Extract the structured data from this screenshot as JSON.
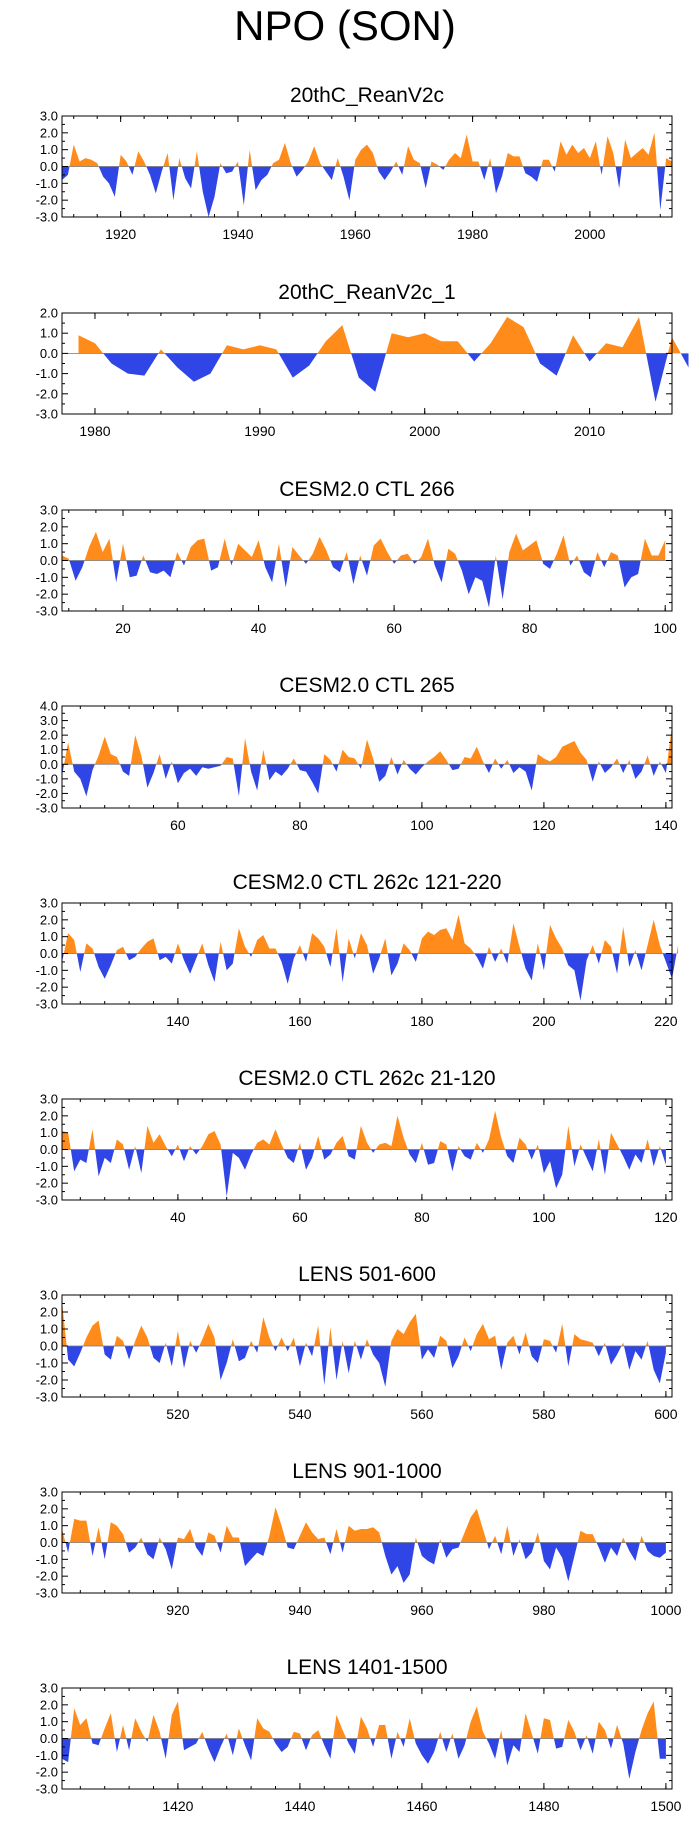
{
  "title": "NPO (SON)",
  "colors": {
    "positive": "#ff8c1a",
    "negative": "#3045e6",
    "axis": "#000000"
  },
  "chart_data": [
    {
      "type": "area",
      "title": "20thC_ReanV2c",
      "xlim": [
        1910,
        2014
      ],
      "ylim": [
        -3.0,
        3.0
      ],
      "yticks": [
        "3.0",
        "2.0",
        "1.0",
        "0.0",
        "-1.0",
        "-2.0",
        "-3.0"
      ],
      "xticks": [
        1920,
        1940,
        1960,
        1980,
        2000
      ],
      "x_start": 1910,
      "values": [
        -0.8,
        -0.5,
        1.3,
        0.3,
        0.5,
        0.4,
        0.2,
        -0.6,
        -1.0,
        -1.8,
        0.7,
        0.3,
        -0.5,
        0.9,
        0.3,
        -0.5,
        -1.6,
        -0.3,
        0.8,
        -2.0,
        0.5,
        -0.7,
        -1.3,
        0.9,
        -1.5,
        -3.0,
        -1.8,
        0.2,
        -0.4,
        -0.3,
        0.3,
        -2.3,
        1.0,
        -1.4,
        -0.8,
        -0.5,
        0.2,
        0.4,
        1.4,
        0.2,
        -0.6,
        -0.2,
        0.3,
        1.2,
        0.2,
        -0.3,
        -0.8,
        0.5,
        -0.6,
        -2.0,
        0.4,
        1.0,
        1.3,
        0.8,
        -0.3,
        -0.8,
        -0.3,
        0.3,
        -0.5,
        1.2,
        0.4,
        0.2,
        -1.3,
        0.3,
        0.1,
        -0.2,
        0.4,
        0.8,
        0.5,
        1.9,
        0.3,
        0.3,
        -0.8,
        0.5,
        -1.6,
        -0.6,
        0.8,
        0.6,
        0.6,
        -0.4,
        -0.6,
        -0.9,
        0.4,
        0.4,
        -0.3,
        1.5,
        0.7,
        1.3,
        0.8,
        1.1,
        0.5,
        1.5,
        -0.5,
        1.8,
        0.8,
        -1.3,
        1.6,
        0.5,
        0.8,
        1.1,
        0.7,
        2.0,
        -2.6,
        0.5,
        0.3
      ]
    },
    {
      "type": "area",
      "title": "20thC_ReanV2c_1",
      "xlim": [
        1978,
        2015
      ],
      "ylim": [
        -3.0,
        2.0
      ],
      "yticks": [
        "2.0",
        "1.0",
        "0.0",
        "-1.0",
        "-2.0",
        "-3.0"
      ],
      "xticks": [
        1980,
        1990,
        2000,
        2010
      ],
      "x_start": 1979,
      "values": [
        0.9,
        0.5,
        -0.5,
        -1.0,
        -1.1,
        0.2,
        -0.7,
        -1.4,
        -1.0,
        0.4,
        0.2,
        0.4,
        0.2,
        -1.2,
        -0.6,
        0.6,
        1.4,
        -1.2,
        -1.9,
        1.0,
        0.8,
        1.0,
        0.6,
        0.6,
        -0.4,
        0.5,
        1.8,
        1.3,
        -0.5,
        -1.1,
        0.9,
        -0.4,
        0.5,
        0.3,
        1.8,
        -2.4,
        0.8,
        -0.7
      ]
    },
    {
      "type": "area",
      "title": "CESM2.0 CTL 266",
      "xlim": [
        11,
        101
      ],
      "ylim": [
        -3.0,
        3.0
      ],
      "yticks": [
        "3.0",
        "2.0",
        "1.0",
        "0.0",
        "-1.0",
        "-2.0",
        "-3.0"
      ],
      "xticks": [
        20,
        40,
        60,
        80,
        100
      ],
      "x_start": 11,
      "values": [
        0.3,
        0.1,
        -1.2,
        -0.4,
        0.8,
        1.7,
        0.5,
        1.3,
        -1.3,
        1.0,
        -1.0,
        -0.9,
        0.3,
        -0.7,
        -0.8,
        -0.6,
        -1.0,
        0.5,
        -0.3,
        0.8,
        1.2,
        1.3,
        -0.6,
        -0.4,
        1.3,
        -0.3,
        1.0,
        0.6,
        0.2,
        1.2,
        -0.4,
        -1.3,
        1.0,
        -1.6,
        0.8,
        0.3,
        -0.2,
        0.4,
        1.4,
        0.6,
        -0.4,
        -0.7,
        0.5,
        -1.4,
        0.3,
        -0.9,
        0.9,
        1.3,
        0.5,
        -0.2,
        0.3,
        0.4,
        -0.2,
        0.2,
        1.3,
        -0.3,
        -1.3,
        0.7,
        0.4,
        -0.6,
        -2.0,
        -1.0,
        -1.2,
        -2.8,
        0.3,
        -2.3,
        0.5,
        1.6,
        0.6,
        0.9,
        1.2,
        -0.2,
        -0.5,
        0.4,
        1.5,
        -0.3,
        0.3,
        -0.7,
        -1.0,
        0.5,
        -0.4,
        0.5,
        0.3,
        -1.6,
        -1.0,
        -0.8,
        1.3,
        0.3,
        0.3,
        1.2
      ]
    },
    {
      "type": "area",
      "title": "CESM2.0 CTL 265",
      "xlim": [
        41,
        141
      ],
      "ylim": [
        -3.0,
        4.0
      ],
      "yticks": [
        "4.0",
        "3.0",
        "2.0",
        "1.0",
        "0.0",
        "-1.0",
        "-2.0",
        "-3.0"
      ],
      "xticks": [
        60,
        80,
        100,
        120,
        140
      ],
      "x_start": 41,
      "values": [
        -0.8,
        1.5,
        -0.5,
        -1.0,
        -2.2,
        -0.4,
        0.6,
        1.9,
        0.7,
        0.5,
        -0.5,
        -0.8,
        2.0,
        0.6,
        -1.6,
        -0.6,
        0.7,
        -1.0,
        0.2,
        -1.3,
        -0.6,
        -0.3,
        -0.8,
        -0.2,
        -0.3,
        -0.2,
        -0.1,
        0.5,
        0.4,
        -2.2,
        1.8,
        -0.5,
        -1.8,
        1.0,
        -1.1,
        -0.5,
        -0.8,
        -0.3,
        0.4,
        -0.4,
        -0.5,
        -1.2,
        -2.0,
        0.7,
        0.3,
        -0.5,
        1.0,
        0.5,
        0.4,
        -0.3,
        1.7,
        0.4,
        -1.2,
        -0.8,
        0.5,
        -0.7,
        0.3,
        -0.3,
        -0.7,
        -0.2,
        0.2,
        0.5,
        0.9,
        0.3,
        -0.4,
        -0.3,
        0.5,
        0.4,
        1.2,
        0.2,
        -0.6,
        0.4,
        -0.3,
        0.3,
        -0.6,
        -0.2,
        -0.5,
        -1.8,
        0.7,
        0.4,
        0.2,
        0.5,
        1.2,
        1.4,
        1.6,
        0.8,
        0.3,
        -1.2,
        0.2,
        -0.6,
        -0.2,
        0.4,
        -0.6,
        0.3,
        -1.0,
        -0.5,
        0.6,
        -0.8,
        0.2,
        -0.6,
        2.7
      ]
    },
    {
      "type": "area",
      "title": "CESM2.0 CTL 262c 121-220",
      "xlim": [
        121,
        221
      ],
      "ylim": [
        -3.0,
        3.0
      ],
      "yticks": [
        "3.0",
        "2.0",
        "1.0",
        "0.0",
        "-1.0",
        "-2.0",
        "-3.0"
      ],
      "xticks": [
        140,
        160,
        180,
        200,
        220
      ],
      "x_start": 121,
      "values": [
        -0.5,
        1.2,
        0.8,
        -1.1,
        0.6,
        0.3,
        -0.8,
        -1.5,
        -0.7,
        0.2,
        0.4,
        -0.4,
        -0.2,
        0.3,
        0.7,
        0.9,
        -0.4,
        -0.2,
        -0.6,
        0.6,
        -0.4,
        -1.2,
        -0.3,
        0.6,
        -0.7,
        -1.7,
        0.7,
        -1.0,
        -0.6,
        1.5,
        0.4,
        -0.2,
        0.8,
        1.1,
        0.3,
        0.3,
        -0.5,
        -1.8,
        -0.3,
        0.5,
        -0.5,
        1.2,
        0.9,
        0.4,
        -0.8,
        1.5,
        -1.7,
        0.9,
        -0.3,
        1.2,
        0.5,
        -1.2,
        -0.3,
        0.9,
        -1.3,
        -0.6,
        0.6,
        0.2,
        -0.5,
        0.9,
        1.3,
        1.1,
        1.4,
        1.5,
        0.8,
        2.3,
        0.6,
        0.3,
        -0.2,
        -0.9,
        0.4,
        -0.5,
        0.3,
        -0.6,
        1.8,
        0.4,
        -0.9,
        -1.6,
        0.6,
        -1.0,
        1.7,
        0.9,
        0.3,
        -0.7,
        -1.0,
        -2.8,
        -0.4,
        0.5,
        -0.6,
        0.8,
        0.4,
        -1.2,
        1.6,
        -0.8,
        0.2,
        -1.0,
        0.5,
        2.0,
        0.5,
        -0.5,
        -1.5,
        0.5
      ]
    },
    {
      "type": "area",
      "title": "CESM2.0 CTL 262c 21-120",
      "xlim": [
        21,
        121
      ],
      "ylim": [
        -3.0,
        3.0
      ],
      "yticks": [
        "3.0",
        "2.0",
        "1.0",
        "0.0",
        "-1.0",
        "-2.0",
        "-3.0"
      ],
      "xticks": [
        40,
        60,
        80,
        100,
        120
      ],
      "x_start": 21,
      "values": [
        1.1,
        1.0,
        -1.3,
        -0.6,
        -0.8,
        1.2,
        -1.6,
        -0.5,
        -0.8,
        0.6,
        0.3,
        -1.2,
        0.2,
        -1.4,
        1.4,
        0.4,
        0.9,
        0.2,
        -0.4,
        0.3,
        -0.7,
        0.2,
        -0.3,
        0.2,
        0.9,
        1.1,
        0.3,
        -2.8,
        -0.2,
        -0.5,
        -1.2,
        -0.3,
        0.4,
        0.6,
        0.3,
        1.2,
        0.3,
        -0.5,
        -0.8,
        0.4,
        -1.2,
        -0.5,
        0.8,
        -0.6,
        -0.3,
        0.4,
        0.8,
        -0.4,
        -0.6,
        1.4,
        0.4,
        -0.2,
        0.3,
        0.4,
        0.2,
        2.0,
        0.7,
        -0.3,
        -0.8,
        0.4,
        -0.9,
        -0.8,
        0.5,
        0.3,
        -1.3,
        0.2,
        -0.4,
        -0.6,
        0.4,
        -0.2,
        0.6,
        2.3,
        0.7,
        -0.4,
        -0.8,
        0.7,
        0.3,
        -0.6,
        0.3,
        -1.4,
        -0.7,
        -2.3,
        -1.5,
        1.4,
        -1.0,
        0.3,
        -0.5,
        -1.3,
        0.6,
        -1.5,
        1.0,
        0.3,
        -0.4,
        -1.2,
        -0.3,
        -0.8,
        0.6,
        -1.0,
        0.2,
        -0.9
      ]
    },
    {
      "type": "area",
      "title": "LENS 501-600",
      "xlim": [
        501,
        601
      ],
      "ylim": [
        -3.0,
        3.0
      ],
      "yticks": [
        "3.0",
        "2.0",
        "1.0",
        "0.0",
        "-1.0",
        "-2.0",
        "-3.0"
      ],
      "xticks": [
        520,
        540,
        560,
        580,
        600
      ],
      "x_start": 501,
      "values": [
        2.6,
        -0.8,
        -1.2,
        -0.4,
        0.5,
        1.2,
        1.5,
        -0.5,
        -0.8,
        0.6,
        0.3,
        -0.8,
        0.3,
        1.2,
        0.5,
        -0.7,
        -1.0,
        0.2,
        -1.2,
        0.9,
        -1.3,
        0.3,
        -0.4,
        0.4,
        1.3,
        0.5,
        -2.0,
        -1.0,
        0.4,
        -0.9,
        -0.7,
        0.3,
        -0.4,
        1.7,
        0.5,
        -0.3,
        0.5,
        -0.3,
        0.5,
        -1.2,
        0.2,
        -0.6,
        1.2,
        -2.3,
        1.1,
        -2.0,
        0.3,
        -1.6,
        0.3,
        -0.8,
        0.4,
        -0.5,
        -1.0,
        -2.4,
        0.3,
        1.0,
        0.7,
        1.4,
        1.9,
        -0.8,
        -0.2,
        -0.7,
        0.6,
        0.3,
        -1.3,
        -0.6,
        0.5,
        -0.3,
        0.7,
        1.3,
        0.4,
        0.6,
        -1.4,
        0.2,
        0.6,
        -0.5,
        0.8,
        -0.6,
        -1.0,
        0.4,
        0.3,
        -0.4,
        1.3,
        -1.2,
        0.7,
        0.4,
        0.3,
        0.2,
        -0.6,
        0.2,
        -1.1,
        -0.5,
        0.2,
        -1.4,
        -0.3,
        -0.8,
        0.3,
        -1.4,
        -2.2,
        -0.4
      ]
    },
    {
      "type": "area",
      "title": "LENS 901-1000",
      "xlim": [
        901,
        1001
      ],
      "ylim": [
        -3.0,
        3.0
      ],
      "yticks": [
        "3.0",
        "2.0",
        "1.0",
        "0.0",
        "-1.0",
        "-2.0",
        "-3.0"
      ],
      "xticks": [
        920,
        940,
        960,
        980,
        1000
      ],
      "x_start": 901,
      "values": [
        0.8,
        -0.6,
        1.4,
        1.3,
        1.3,
        -0.8,
        0.9,
        -1.0,
        1.2,
        1.0,
        0.5,
        -0.6,
        -0.3,
        0.3,
        -0.7,
        -1.0,
        0.3,
        -0.4,
        -1.6,
        0.3,
        0.2,
        0.8,
        -0.3,
        -0.8,
        0.6,
        0.4,
        -0.6,
        1.0,
        0.3,
        0.3,
        -1.4,
        -1.0,
        -0.6,
        -0.8,
        0.4,
        2.1,
        1.0,
        -0.3,
        -0.4,
        0.4,
        1.2,
        0.6,
        0.2,
        0.3,
        -0.7,
        0.8,
        -0.6,
        1.0,
        0.7,
        0.8,
        0.8,
        0.9,
        0.6,
        -0.8,
        -1.9,
        -1.4,
        -2.4,
        -1.9,
        0.3,
        -0.8,
        -1.1,
        -1.3,
        0.2,
        -0.9,
        -0.4,
        -0.3,
        0.6,
        1.5,
        2.0,
        0.8,
        -0.4,
        0.4,
        -0.7,
        1.0,
        -0.8,
        0.2,
        -1.0,
        -0.6,
        0.6,
        -1.1,
        -1.6,
        -0.3,
        -0.9,
        -2.3,
        -0.8,
        0.7,
        0.5,
        0.5,
        -0.3,
        -1.2,
        -0.3,
        -0.8,
        0.3,
        -0.5,
        -1.1,
        0.4,
        -0.5,
        -0.8,
        -0.9,
        -0.6
      ]
    },
    {
      "type": "area",
      "title": "LENS 1401-1500",
      "xlim": [
        1401,
        1501
      ],
      "ylim": [
        -3.0,
        3.0
      ],
      "yticks": [
        "3.0",
        "2.0",
        "1.0",
        "0.0",
        "-1.0",
        "-2.0",
        "-3.0"
      ],
      "xticks": [
        1420,
        1440,
        1460,
        1480,
        1500
      ],
      "x_start": 1401,
      "values": [
        -1.2,
        -1.4,
        1.8,
        0.8,
        1.2,
        -0.3,
        -0.4,
        0.6,
        1.5,
        -0.8,
        0.8,
        -0.7,
        1.2,
        0.4,
        -0.2,
        1.4,
        0.4,
        -1.2,
        1.4,
        2.2,
        -0.7,
        -0.5,
        -0.3,
        0.4,
        -0.6,
        -1.4,
        -0.5,
        0.3,
        -1.0,
        0.6,
        -0.4,
        -1.3,
        1.2,
        0.6,
        0.4,
        -0.3,
        -0.8,
        -0.5,
        0.4,
        0.3,
        -0.7,
        0.2,
        0.5,
        -0.4,
        -1.2,
        1.4,
        0.5,
        -0.3,
        -0.9,
        1.3,
        0.6,
        -0.5,
        0.8,
        0.8,
        -1.2,
        0.4,
        -0.5,
        1.2,
        -0.3,
        -1.0,
        -1.5,
        -0.8,
        0.4,
        -0.8,
        0.3,
        -1.2,
        -0.4,
        1.0,
        1.9,
        0.4,
        -0.3,
        -1.2,
        0.5,
        -1.6,
        -0.4,
        -0.8,
        1.5,
        0.3,
        -0.9,
        1.2,
        1.1,
        -0.6,
        -0.5,
        1.1,
        0.4,
        -0.7,
        0.2,
        -0.9,
        1.0,
        0.5,
        -0.6,
        0.8,
        -0.3,
        -2.4,
        -0.8,
        0.5,
        1.5,
        2.2,
        -1.2,
        -1.2
      ]
    }
  ]
}
